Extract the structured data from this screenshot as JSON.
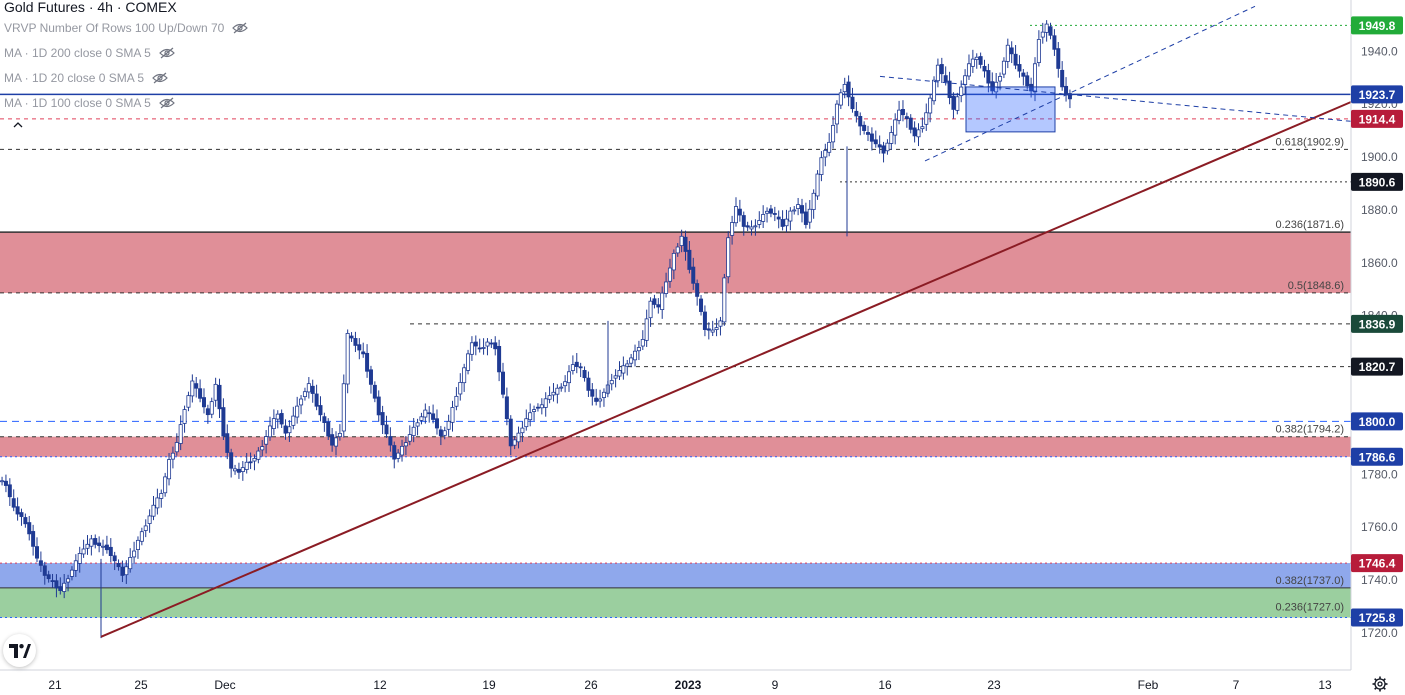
{
  "legend": {
    "title": "Gold Futures · 4h · COMEX",
    "rows": [
      "VRVP Number Of Rows 100 Up/Down 70",
      "MA · 1D 200 close 0 SMA 5",
      "MA · 1D 20 close 0 SMA 5",
      "MA · 1D 100 close 0 SMA 5"
    ]
  },
  "colors": {
    "bg": "#ffffff",
    "candle": "#1f3a93",
    "red_zone": "#e08f98",
    "blue_zone": "#8fa8ec",
    "green_zone": "#9bcf9f",
    "trendline": "#8b1c24",
    "hline_blue": "#1e3fa6",
    "dashed_blue": "#2962ff",
    "green_dotted": "#22ab39",
    "red_dotted": "#e0405a",
    "label_blue": "#1e3fa6",
    "label_red": "#b71c3a",
    "label_dark": "#131722",
    "label_green_dark": "#1a4a3a",
    "axis_text": "#555a66"
  },
  "chart_data": {
    "type": "candlestick",
    "title": "Gold Futures · 4h · COMEX",
    "ylim": [
      1713,
      1958
    ],
    "x_ticks": [
      "21",
      "25",
      "Dec",
      "12",
      "19",
      "26",
      "2023",
      "9",
      "16",
      "23",
      "Feb",
      "7",
      "13"
    ],
    "y_ticks": [
      1720.0,
      1740.0,
      1760.0,
      1780.0,
      1800.0,
      1820.0,
      1840.0,
      1860.0,
      1880.0,
      1900.0,
      1920.0,
      1940.0
    ],
    "price_labels": [
      {
        "text": "1949.8",
        "value": 1949.8,
        "style": "green"
      },
      {
        "text": "1923.7",
        "value": 1923.7,
        "style": "blue"
      },
      {
        "text": "1914.4",
        "value": 1914.4,
        "style": "red"
      },
      {
        "text": "1890.6",
        "value": 1890.6,
        "style": "dark"
      },
      {
        "text": "1836.9",
        "value": 1836.9,
        "style": "greendark"
      },
      {
        "text": "1820.7",
        "value": 1820.7,
        "style": "dark"
      },
      {
        "text": "1800.0",
        "value": 1800.0,
        "style": "blue"
      },
      {
        "text": "1786.6",
        "value": 1786.6,
        "style": "blue"
      },
      {
        "text": "1746.4",
        "value": 1746.4,
        "style": "red"
      },
      {
        "text": "1725.8",
        "value": 1725.8,
        "style": "blue"
      }
    ],
    "fib_labels": [
      {
        "text": "0.618(1902.9)",
        "value": 1902.9
      },
      {
        "text": "0.236(1871.6)",
        "value": 1871.6
      },
      {
        "text": "0.5(1848.6)",
        "value": 1848.6
      },
      {
        "text": "0.382(1794.2)",
        "value": 1794.2
      },
      {
        "text": "0.382(1737.0)",
        "value": 1737.0
      },
      {
        "text": "0.236(1727.0)",
        "value": 1727.0
      }
    ],
    "zones": [
      {
        "from": 1848.6,
        "to": 1871.6,
        "color": "red"
      },
      {
        "from": 1786.6,
        "to": 1794.2,
        "color": "red"
      },
      {
        "from": 1737.0,
        "to": 1746.4,
        "color": "blue"
      },
      {
        "from": 1725.8,
        "to": 1737.0,
        "color": "green"
      }
    ],
    "price_path": [
      1776,
      1767,
      1764,
      1758,
      1748,
      1742,
      1739,
      1736,
      1741,
      1747,
      1752,
      1755,
      1753,
      1752,
      1747,
      1742,
      1748,
      1755,
      1761,
      1768,
      1773,
      1785,
      1792,
      1805,
      1815,
      1809,
      1802,
      1814,
      1795,
      1782,
      1781,
      1784,
      1786,
      1791,
      1798,
      1803,
      1795,
      1802,
      1809,
      1814,
      1806,
      1799,
      1791,
      1796,
      1833,
      1829,
      1825,
      1814,
      1803,
      1795,
      1786,
      1790,
      1795,
      1800,
      1804,
      1801,
      1794,
      1800,
      1810,
      1820,
      1830,
      1827,
      1830,
      1828,
      1810,
      1791,
      1795,
      1801,
      1805,
      1806,
      1810,
      1812,
      1815,
      1822,
      1820,
      1812,
      1807,
      1811,
      1816,
      1819,
      1822,
      1826,
      1831,
      1846,
      1843,
      1853,
      1863,
      1870,
      1858,
      1847,
      1835,
      1834,
      1838,
      1870,
      1881,
      1874,
      1873,
      1876,
      1880,
      1878,
      1874,
      1879,
      1882,
      1875,
      1886,
      1900,
      1905,
      1920,
      1928,
      1918,
      1912,
      1908,
      1905,
      1902,
      1909,
      1918,
      1914,
      1908,
      1912,
      1922,
      1935,
      1928,
      1918,
      1927,
      1935,
      1938,
      1932,
      1925,
      1931,
      1942,
      1935,
      1930,
      1925,
      1945,
      1950,
      1941,
      1926,
      1922
    ]
  }
}
